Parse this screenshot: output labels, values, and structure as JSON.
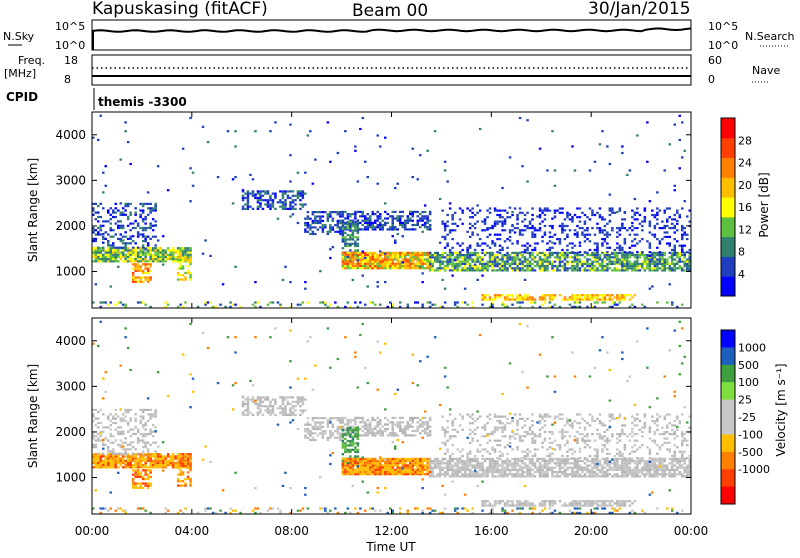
{
  "header": {
    "station": "Kapuskasing (fitACF)",
    "beam": "Beam 00",
    "date": "30/Jan/2015"
  },
  "aux_panels": {
    "nsky_label": "N.Sky",
    "nsky_ticks": [
      "10^5",
      "10^0"
    ],
    "nsearch_label": "N.Search",
    "nsearch_ticks": [
      "10^5",
      "10^0"
    ],
    "freq_label": "Freq.",
    "freq_unit": "[MHz]",
    "freq_ticks": [
      "18",
      "8"
    ],
    "nave_label": "Nave",
    "nave_ticks": [
      "60",
      "0"
    ],
    "cpid_label": "CPID",
    "cpid_value": "themis -3300"
  },
  "colors": {
    "power": [
      "#0000ff",
      "#1f3fbf",
      "#2f7f6f",
      "#5fbf3f",
      "#ffff00",
      "#ffbf00",
      "#ff8000",
      "#ff4000",
      "#ff0000"
    ],
    "velocity": [
      "#0000ff",
      "#1f5fbf",
      "#3f9f3f",
      "#7fdf3f",
      "#c8c8c8",
      "#c8c8c8",
      "#ffbf00",
      "#ff7f00",
      "#ff3f00",
      "#ff0000"
    ],
    "ground_scatter": "#bebebe"
  },
  "chart_data": [
    {
      "type": "heatmap",
      "name": "power",
      "ylabel": "Slant Range [km]",
      "ylim": [
        200,
        4500
      ],
      "xlim_hours": [
        0,
        24
      ],
      "yticks": [
        "1000",
        "2000",
        "3000",
        "4000"
      ],
      "colorbar_label": "Power [dB]",
      "colorbar_range": [
        0,
        32
      ],
      "colorbar_ticks": [
        "4",
        "8",
        "12",
        "16",
        "20",
        "24",
        "28"
      ],
      "colorbar_tick_values": [
        4,
        8,
        12,
        16,
        20,
        24,
        28
      ]
    },
    {
      "type": "heatmap",
      "name": "velocity",
      "ylabel": "Slant Range [km]",
      "ylim": [
        200,
        4500
      ],
      "xlim_hours": [
        0,
        24
      ],
      "yticks": [
        "1000",
        "2000",
        "3000",
        "4000"
      ],
      "xticks": [
        "00:00",
        "04:00",
        "08:00",
        "12:00",
        "16:00",
        "20:00",
        "00:00"
      ],
      "xtick_values": [
        0,
        4,
        8,
        12,
        16,
        20,
        24
      ],
      "xlabel": "Time UT",
      "colorbar_label": "Velocity [m s⁻¹]",
      "colorbar_ticks": [
        "1000",
        "500",
        "100",
        "25",
        "-25",
        "-100",
        "-500",
        "-1000"
      ]
    }
  ]
}
